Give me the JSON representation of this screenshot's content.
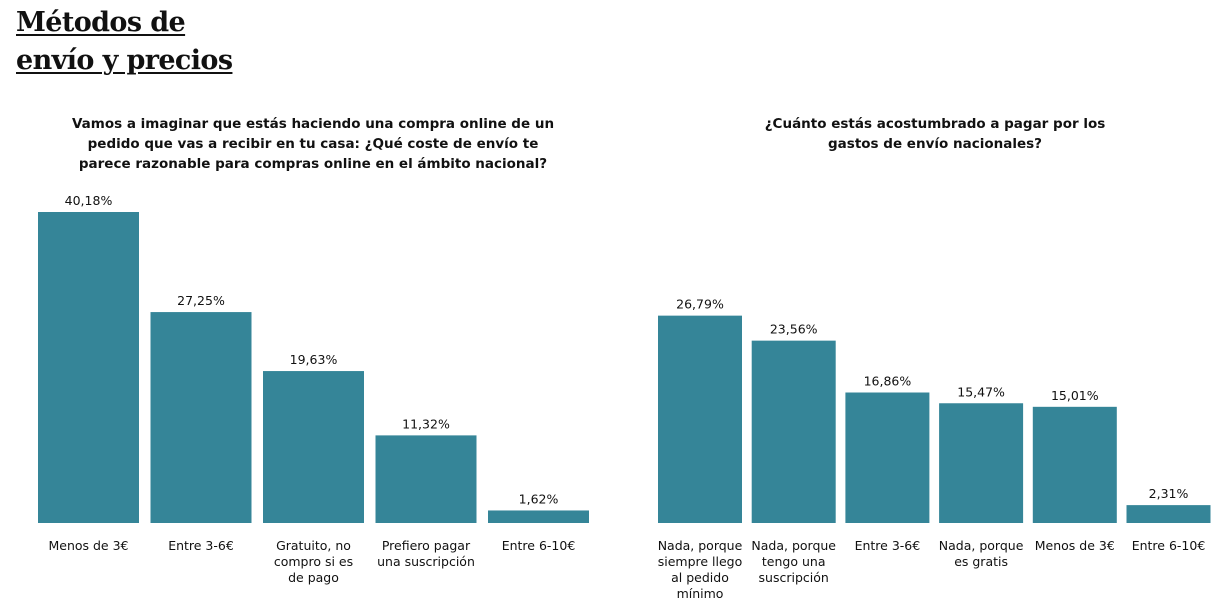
{
  "page": {
    "title_line1": "Métodos de",
    "title_line2": "envío y precios"
  },
  "colors": {
    "bar": "#358598",
    "text": "#111111"
  },
  "chart_data": [
    {
      "type": "bar",
      "title": "Vamos a imaginar que estás haciendo una compra online de un pedido que vas a recibir en tu casa: ¿Qué coste de envío te parece razonable para compras online en el ámbito nacional?",
      "categories": [
        "Menos de 3€",
        "Entre 3-6€",
        "Gratuito, no compro si es de pago",
        "Prefiero pagar una suscripción",
        "Entre 6-10€"
      ],
      "category_lines": [
        [
          "Menos de 3€"
        ],
        [
          "Entre 3-6€"
        ],
        [
          "Gratuito, no",
          "compro si es",
          "de pago"
        ],
        [
          "Prefiero pagar",
          "una suscripción"
        ],
        [
          "Entre 6-10€"
        ]
      ],
      "values": [
        40.18,
        27.25,
        19.63,
        11.32,
        1.62
      ],
      "value_labels": [
        "40,18%",
        "27,25%",
        "19,63%",
        "11,32%",
        "1,62%"
      ],
      "ylim": [
        0,
        40.18
      ],
      "grid": false,
      "legend": "none"
    },
    {
      "type": "bar",
      "title": "¿Cuánto estás acostumbrado a pagar por los gastos de envío nacionales?",
      "categories": [
        "Nada, porque siempre llego al pedido mínimo",
        "Nada, porque tengo una suscripción",
        "Entre 3-6€",
        "Nada, porque es gratis",
        "Menos de 3€",
        "Entre 6-10€"
      ],
      "category_lines": [
        [
          "Nada, porque",
          "siempre llego",
          "al pedido",
          "mínimo"
        ],
        [
          "Nada, porque",
          "tengo una",
          "suscripción"
        ],
        [
          "Entre 3-6€"
        ],
        [
          "Nada, porque",
          "es gratis"
        ],
        [
          "Menos de 3€"
        ],
        [
          "Entre 6-10€"
        ]
      ],
      "values": [
        26.79,
        23.56,
        16.86,
        15.47,
        15.01,
        2.31
      ],
      "value_labels": [
        "26,79%",
        "23,56%",
        "16,86%",
        "15,47%",
        "15,01%",
        "2,31%"
      ],
      "ylim": [
        0,
        40.18
      ],
      "grid": false,
      "legend": "none"
    }
  ]
}
